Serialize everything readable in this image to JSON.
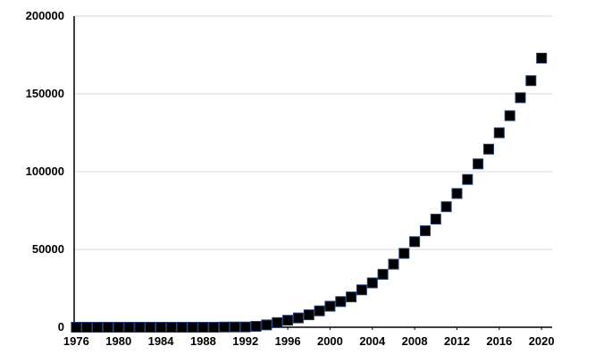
{
  "chart_data": {
    "type": "scatter",
    "title": "",
    "xlabel": "",
    "ylabel": "",
    "xlim": [
      1975.8,
      2021.0
    ],
    "ylim": [
      0,
      200000
    ],
    "x_ticks": [
      "1976",
      "1980",
      "1984",
      "1988",
      "1992",
      "1996",
      "2000",
      "2004",
      "2008",
      "2012",
      "2016",
      "2020"
    ],
    "y_ticks": [
      "0",
      "50000",
      "100000",
      "150000",
      "200000"
    ],
    "grid": "horizontal",
    "legend": "none",
    "marker": "square",
    "colors": {
      "marker_fill": "#000000",
      "marker_edge": "#1e3a6e",
      "grid": "#d9d9d9",
      "axis": "#000000"
    },
    "series": [
      {
        "x": [
          1976,
          1977,
          1978,
          1979,
          1980,
          1981,
          1982,
          1983,
          1984,
          1985,
          1986,
          1987,
          1988,
          1989,
          1990,
          1991,
          1992,
          1993,
          1994,
          1995,
          1996,
          1997,
          1998,
          1999,
          2000,
          2001,
          2002,
          2003,
          2004,
          2005,
          2006,
          2007,
          2008,
          2009,
          2010,
          2011,
          2012,
          2013,
          2014,
          2015,
          2016,
          2017,
          2018,
          2019,
          2020
        ],
        "y": [
          0,
          0,
          0,
          0,
          0,
          0,
          0,
          0,
          0,
          0,
          0,
          0,
          0,
          0,
          100,
          150,
          200,
          600,
          1500,
          3000,
          4500,
          6000,
          8000,
          10500,
          13500,
          16500,
          19500,
          24000,
          28500,
          34000,
          40500,
          47500,
          55000,
          62000,
          69500,
          77500,
          86000,
          95000,
          105000,
          114500,
          125000,
          136000,
          147500,
          158500,
          173000
        ]
      }
    ]
  }
}
